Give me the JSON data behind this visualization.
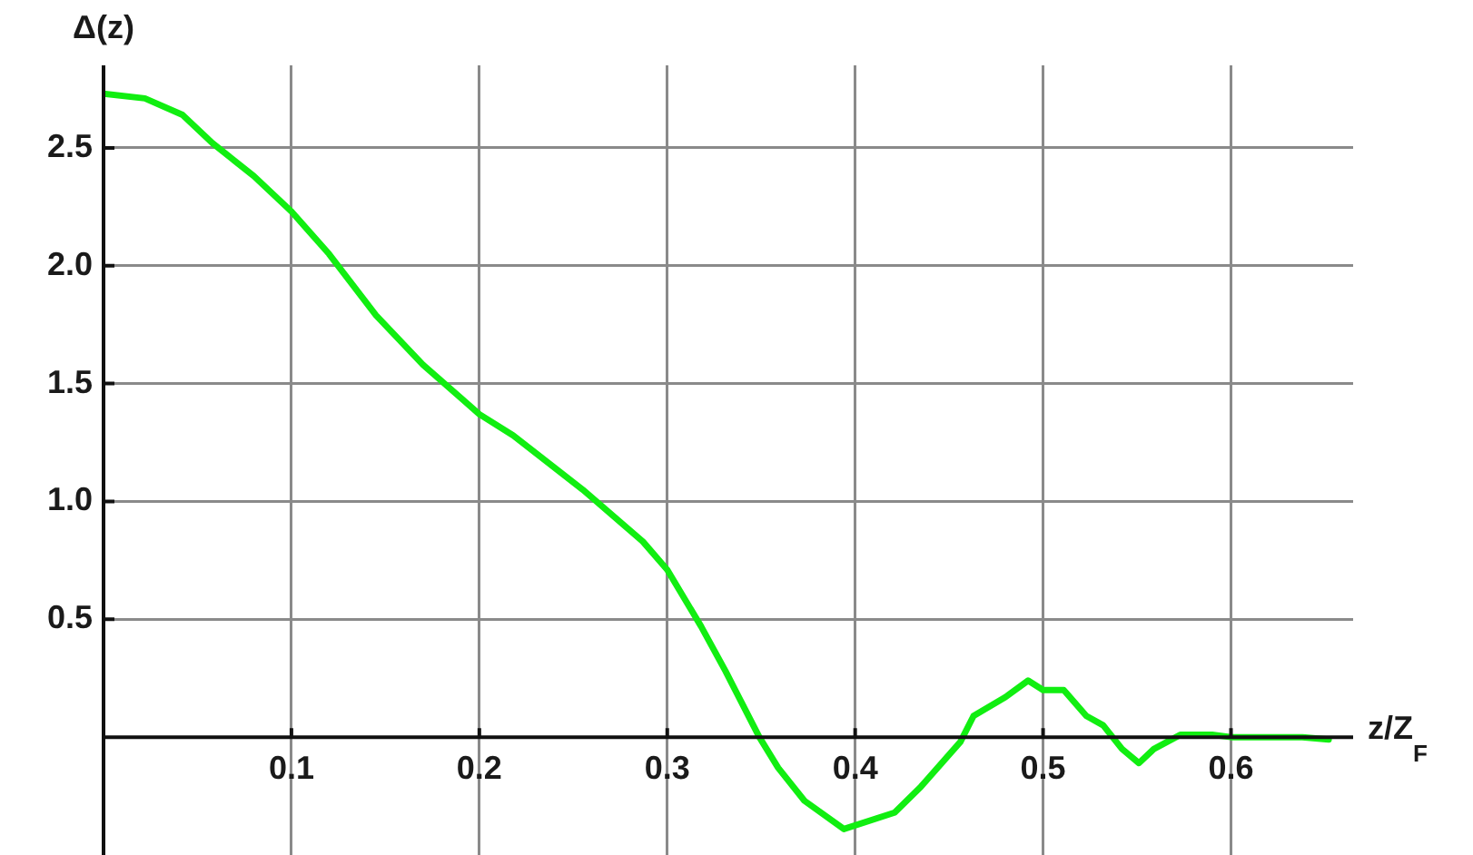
{
  "chart_data": {
    "type": "line",
    "xlabel": "z/Z$_{F}$",
    "ylabel": "Δ(z)",
    "x": [
      0,
      0.022,
      0.042,
      0.058,
      0.08,
      0.1,
      0.12,
      0.145,
      0.17,
      0.2,
      0.218,
      0.255,
      0.287,
      0.3,
      0.318,
      0.331,
      0.349,
      0.359,
      0.373,
      0.394,
      0.421,
      0.435,
      0.456,
      0.463,
      0.48,
      0.492,
      0.5,
      0.511,
      0.523,
      0.532,
      0.542,
      0.551,
      0.559,
      0.573,
      0.59,
      0.6,
      0.638,
      0.652
    ],
    "series": [
      {
        "color": "#11ee11",
        "values": [
          2.73,
          2.71,
          2.64,
          2.52,
          2.38,
          2.23,
          2.05,
          1.79,
          1.58,
          1.37,
          1.28,
          1.05,
          0.83,
          0.71,
          0.47,
          0.28,
          0.0,
          -0.13,
          -0.27,
          -0.39,
          -0.32,
          -0.21,
          -0.02,
          0.09,
          0.17,
          0.24,
          0.2,
          0.2,
          0.09,
          0.05,
          -0.05,
          -0.11,
          -0.05,
          0.01,
          0.01,
          0.0,
          0.0,
          -0.01
        ]
      }
    ],
    "xlim": [
      0,
      0.665
    ],
    "ylim": [
      -0.5,
      2.85
    ],
    "xticks": [
      0.1,
      0.2,
      0.3,
      0.4,
      0.5,
      0.6
    ],
    "yticks": [
      0.5,
      {
        "value": 1,
        "label": "1.0"
      },
      1.5,
      {
        "value": 2,
        "label": "2.0"
      },
      2.5
    ],
    "grid": true,
    "legend": false,
    "marker": "none",
    "line_style": "solid"
  }
}
